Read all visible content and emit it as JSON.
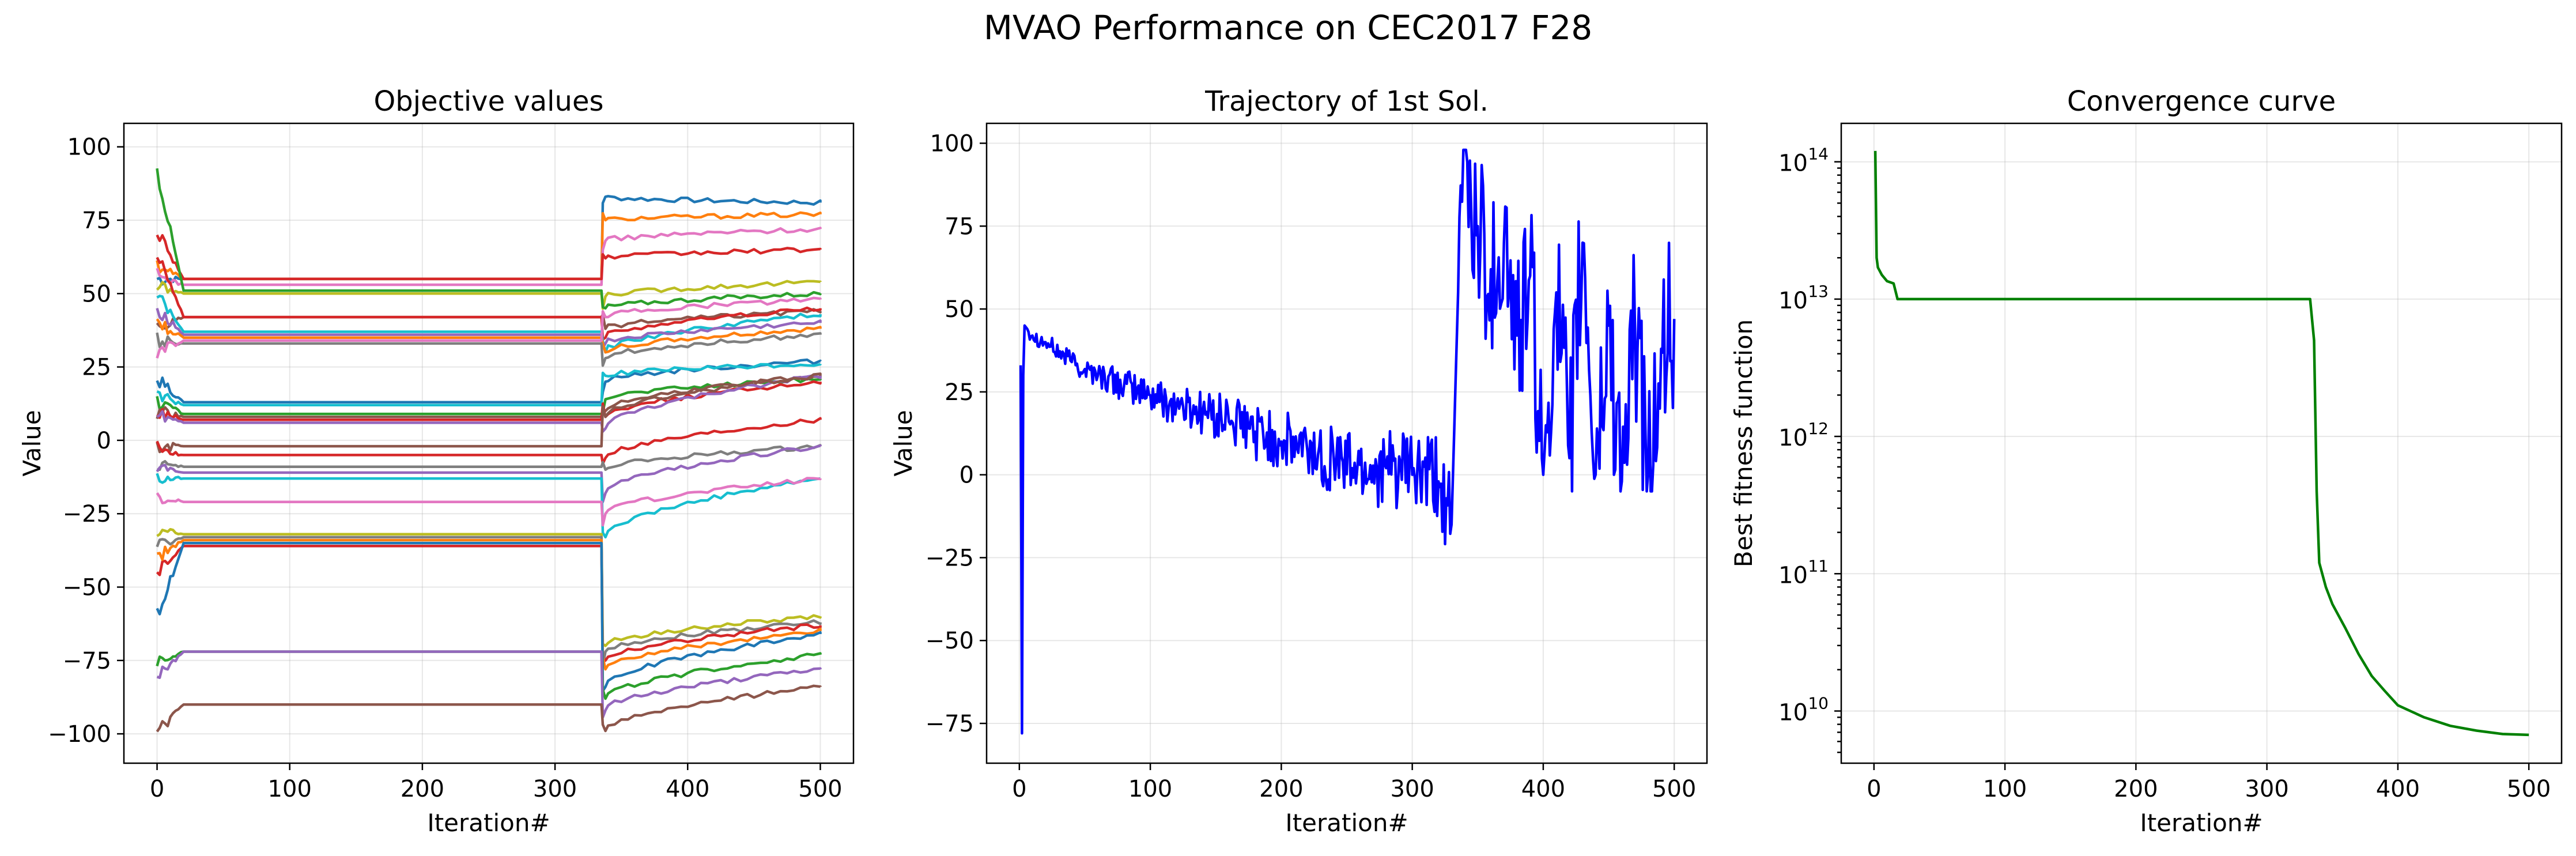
{
  "figure": {
    "suptitle": "MVAO Performance on CEC2017 F28"
  },
  "chart_data": [
    {
      "type": "line",
      "title": "Objective values",
      "xlabel": "Iteration#",
      "ylabel": "Value",
      "xlim": [
        -25,
        525
      ],
      "ylim": [
        -110,
        108
      ],
      "xticks": [
        0,
        100,
        200,
        300,
        400,
        500
      ],
      "yticks": [
        -100,
        -75,
        -50,
        -25,
        0,
        25,
        50,
        75,
        100
      ],
      "grid": true,
      "legend": "none",
      "series": [
        {
          "color": "#1f77b4",
          "start": 55,
          "plateau": 55,
          "jump": 83,
          "end": 81
        },
        {
          "color": "#ff7f0e",
          "start": 60,
          "plateau": 55,
          "jump": 75,
          "end": 77
        },
        {
          "color": "#e377c2",
          "start": 56,
          "plateau": 53,
          "jump": 68,
          "end": 72
        },
        {
          "color": "#d62728",
          "start": 72,
          "plateau": 55,
          "jump": 62,
          "end": 65
        },
        {
          "color": "#bcbd22",
          "start": 52,
          "plateau": 50,
          "jump": 49,
          "end": 54
        },
        {
          "color": "#2ca02c",
          "start": 92,
          "plateau": 51,
          "jump": 45,
          "end": 50
        },
        {
          "color": "#8c564b",
          "start": 38,
          "plateau": 42,
          "jump": 38,
          "end": 44
        },
        {
          "color": "#d62728",
          "start": 65,
          "plateau": 42,
          "jump": 35,
          "end": 45
        },
        {
          "color": "#17becf",
          "start": 50,
          "plateau": 37,
          "jump": 30,
          "end": 43
        },
        {
          "color": "#9467bd",
          "start": 45,
          "plateau": 36,
          "jump": 33,
          "end": 40
        },
        {
          "color": "#ff7f0e",
          "start": 40,
          "plateau": 35,
          "jump": 30,
          "end": 38
        },
        {
          "color": "#7f7f7f",
          "start": 34,
          "plateau": 33,
          "jump": 28,
          "end": 36
        },
        {
          "color": "#e377c2",
          "start": 30,
          "plateau": 34,
          "jump": 42,
          "end": 48
        },
        {
          "color": "#1f77b4",
          "start": 21,
          "plateau": 13,
          "jump": 20,
          "end": 27
        },
        {
          "color": "#17becf",
          "start": 16,
          "plateau": 12,
          "jump": 22,
          "end": 26
        },
        {
          "color": "#2ca02c",
          "start": 13,
          "plateau": 9,
          "jump": 14,
          "end": 21
        },
        {
          "color": "#8c564b",
          "start": 10,
          "plateau": 8,
          "jump": 10,
          "end": 22
        },
        {
          "color": "#d62728",
          "start": 10,
          "plateau": 7,
          "jump": 8,
          "end": 20
        },
        {
          "color": "#9467bd",
          "start": 8,
          "plateau": 6,
          "jump": 4,
          "end": 22
        },
        {
          "color": "#8c564b",
          "start": -2,
          "plateau": -2,
          "jump": 8,
          "end": 22
        },
        {
          "color": "#d62728",
          "start": -3,
          "plateau": -5,
          "jump": -6,
          "end": 7
        },
        {
          "color": "#7f7f7f",
          "start": -8,
          "plateau": -9,
          "jump": -10,
          "end": -2
        },
        {
          "color": "#9467bd",
          "start": -10,
          "plateau": -11,
          "jump": -18,
          "end": -2
        },
        {
          "color": "#17becf",
          "start": -12,
          "plateau": -13,
          "jump": -33,
          "end": -13
        },
        {
          "color": "#e377c2",
          "start": -20,
          "plateau": -21,
          "jump": -25,
          "end": -13
        },
        {
          "color": "#bcbd22",
          "start": -30,
          "plateau": -32,
          "jump": -70,
          "end": -60
        },
        {
          "color": "#7f7f7f",
          "start": -35,
          "plateau": -33,
          "jump": -72,
          "end": -62
        },
        {
          "color": "#d62728",
          "start": -45,
          "plateau": -36,
          "jump": -75,
          "end": -63
        },
        {
          "color": "#ff7f0e",
          "start": -40,
          "plateau": -34,
          "jump": -78,
          "end": -65
        },
        {
          "color": "#1f77b4",
          "start": -60,
          "plateau": -35,
          "jump": -84,
          "end": -66
        },
        {
          "color": "#2ca02c",
          "start": -75,
          "plateau": -72,
          "jump": -88,
          "end": -73
        },
        {
          "color": "#9467bd",
          "start": -80,
          "plateau": -72,
          "jump": -92,
          "end": -78
        },
        {
          "color": "#8c564b",
          "start": -100,
          "plateau": -90,
          "jump": -99,
          "end": -84
        }
      ],
      "jump_iteration": 335,
      "plateau_iteration": 20
    },
    {
      "type": "line",
      "title": "Trajectory of 1st Sol.",
      "xlabel": "Iteration#",
      "ylabel": "Value",
      "xlim": [
        -25,
        525
      ],
      "ylim": [
        -87,
        106
      ],
      "xticks": [
        0,
        100,
        200,
        300,
        400,
        500
      ],
      "yticks": [
        -75,
        -50,
        -25,
        0,
        25,
        50,
        75,
        100
      ],
      "grid": true,
      "legend": "none",
      "color": "#0000ff",
      "x": [
        1,
        2,
        3,
        4,
        6,
        10,
        20,
        40,
        60,
        80,
        100,
        120,
        140,
        160,
        180,
        200,
        220,
        240,
        260,
        280,
        300,
        320,
        330,
        335,
        340,
        345,
        350,
        360,
        370,
        380,
        390,
        400,
        410,
        420,
        430,
        440,
        450,
        460,
        470,
        480,
        490,
        500
      ],
      "values": [
        33,
        -78,
        30,
        45,
        44,
        42,
        40,
        34,
        30,
        27,
        24,
        21,
        19,
        16,
        13,
        10,
        7,
        5,
        3,
        2,
        0,
        -2,
        -15,
        55,
        98,
        80,
        75,
        62,
        70,
        42,
        60,
        0,
        55,
        5,
        70,
        0,
        45,
        -2,
        45,
        0,
        38,
        47
      ]
    },
    {
      "type": "line",
      "title": "Convergence curve",
      "xlabel": "Iteration#",
      "ylabel": "Best fitness function",
      "xlim": [
        -25,
        525
      ],
      "ylim_log10": [
        9.62,
        14.28
      ],
      "yscale": "log",
      "xticks": [
        0,
        100,
        200,
        300,
        400,
        500
      ],
      "ytick_mantissa": "10",
      "ytick_exponents": [
        "10",
        "11",
        "12",
        "13",
        "14"
      ],
      "grid": true,
      "legend": "none",
      "color": "#008000",
      "x": [
        1,
        2,
        3,
        6,
        10,
        15,
        18,
        20,
        100,
        200,
        300,
        333,
        336,
        338,
        340,
        345,
        350,
        360,
        370,
        380,
        390,
        400,
        420,
        440,
        460,
        480,
        500
      ],
      "values": [
        120000000000000.0,
        20000000000000.0,
        17000000000000.0,
        15000000000000.0,
        13500000000000.0,
        13000000000000.0,
        10000000000000.0,
        10000000000000.0,
        10000000000000.0,
        10000000000000.0,
        10000000000000.0,
        10000000000000.0,
        5000000000000.0,
        400000000000.0,
        120000000000.0,
        80000000000.0,
        60000000000.0,
        40000000000.0,
        26000000000.0,
        18000000000.0,
        14000000000.0,
        11000000000.0,
        9000000000.0,
        7800000000.0,
        7200000000.0,
        6800000000.0,
        6700000000.0
      ]
    }
  ]
}
